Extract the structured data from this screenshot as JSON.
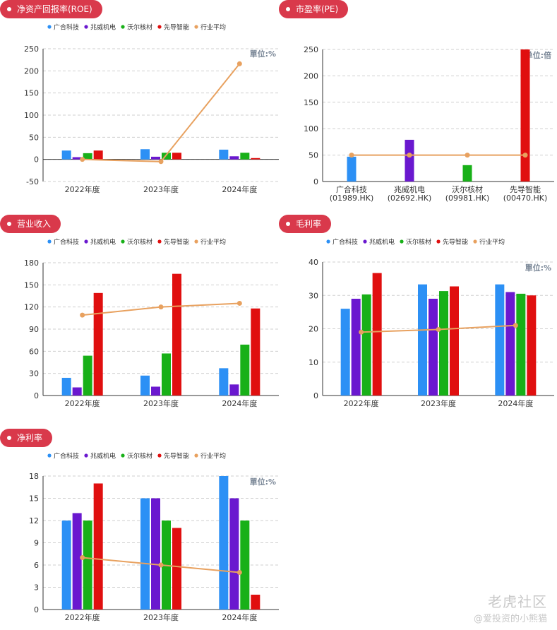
{
  "legend": [
    "广合科技",
    "兆威机电",
    "沃尔核材",
    "先导智能",
    "行业平均"
  ],
  "colors": [
    "#2c90f5",
    "#6a18cf",
    "#18b018",
    "#e00f0f",
    "#e8a15f"
  ],
  "watermark": {
    "brand": "老虎社区",
    "user": "@爱投资的小熊猫"
  },
  "chart_data": [
    {
      "type": "bar",
      "title": "净资产回报率(ROE)",
      "unit": "單位:%",
      "categories": [
        "2022年度",
        "2023年度",
        "2024年度"
      ],
      "ylim": [
        -50,
        250
      ],
      "yticks": [
        -50,
        0,
        50,
        100,
        150,
        200,
        250
      ],
      "series": [
        {
          "name": "广合科技",
          "values": [
            20,
            23,
            22
          ]
        },
        {
          "name": "兆威机电",
          "values": [
            5,
            6,
            7
          ]
        },
        {
          "name": "沃尔核材",
          "values": [
            14,
            15,
            15
          ]
        },
        {
          "name": "先导智能",
          "values": [
            20,
            15,
            3
          ]
        }
      ],
      "line": {
        "name": "行业平均",
        "values": [
          0,
          -5,
          216
        ]
      },
      "legend_position": "top"
    },
    {
      "type": "bar",
      "title": "市盈率(PE)",
      "unit": "单位:倍",
      "categories": [
        "广合科技\n(01989.HK)",
        "兆威机电\n(02692.HK)",
        "沃尔核材\n(09981.HK)",
        "先导智能\n(00470.HK)"
      ],
      "ylim": [
        0,
        250
      ],
      "yticks": [
        0,
        50,
        100,
        150,
        200,
        250
      ],
      "values": [
        47,
        79,
        31,
        250
      ],
      "bar_colors": [
        "#2c90f5",
        "#6a18cf",
        "#18b018",
        "#e00f0f"
      ],
      "line": {
        "name": "行业平均",
        "values": [
          50,
          50,
          50,
          50
        ]
      }
    },
    {
      "type": "bar",
      "title": "营业收入",
      "unit": "",
      "categories": [
        "2022年度",
        "2023年度",
        "2024年度"
      ],
      "ylim": [
        0,
        180
      ],
      "yticks": [
        0,
        30,
        60,
        90,
        120,
        150,
        180
      ],
      "series": [
        {
          "name": "广合科技",
          "values": [
            24,
            27,
            37
          ]
        },
        {
          "name": "兆威机电",
          "values": [
            11,
            12,
            15
          ]
        },
        {
          "name": "沃尔核材",
          "values": [
            54,
            57,
            69
          ]
        },
        {
          "name": "先导智能",
          "values": [
            139,
            165,
            118
          ]
        }
      ],
      "line": {
        "name": "行业平均",
        "values": [
          109,
          120,
          125
        ]
      },
      "legend_position": "top"
    },
    {
      "type": "bar",
      "title": "毛利率",
      "unit": "單位:%",
      "categories": [
        "2022年度",
        "2023年度",
        "2024年度"
      ],
      "ylim": [
        0,
        40
      ],
      "yticks": [
        0,
        10,
        20,
        30,
        40
      ],
      "series": [
        {
          "name": "广合科技",
          "values": [
            26,
            33.3,
            33.3
          ]
        },
        {
          "name": "兆威机电",
          "values": [
            29,
            29,
            31
          ]
        },
        {
          "name": "沃尔核材",
          "values": [
            30.3,
            31.3,
            30.5
          ]
        },
        {
          "name": "先导智能",
          "values": [
            36.7,
            32.7,
            30
          ]
        }
      ],
      "line": {
        "name": "行业平均",
        "values": [
          19,
          19.8,
          21
        ]
      },
      "legend_position": "top"
    },
    {
      "type": "bar",
      "title": "净利率",
      "unit": "單位:%",
      "categories": [
        "2022年度",
        "2023年度",
        "2024年度"
      ],
      "ylim": [
        0,
        18
      ],
      "yticks": [
        0,
        3,
        6,
        9,
        12,
        15,
        18
      ],
      "series": [
        {
          "name": "广合科技",
          "values": [
            12,
            15,
            18
          ]
        },
        {
          "name": "兆威机电",
          "values": [
            13,
            15,
            15
          ]
        },
        {
          "name": "沃尔核材",
          "values": [
            12,
            12,
            12
          ]
        },
        {
          "name": "先导智能",
          "values": [
            17,
            11,
            2
          ]
        }
      ],
      "line": {
        "name": "行业平均",
        "values": [
          7,
          6,
          5
        ]
      },
      "legend_position": "top"
    }
  ]
}
